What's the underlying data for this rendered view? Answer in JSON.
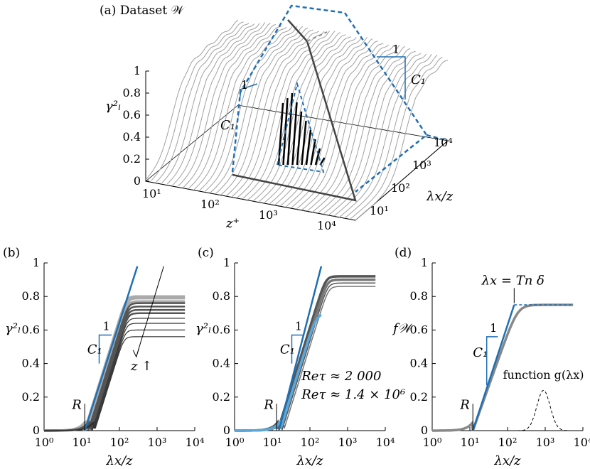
{
  "colors": {
    "blue": "#1f6fb3",
    "lightblue": "#5aa7d9",
    "gray": "#999999",
    "darkgray": "#444444",
    "black": "#000000"
  },
  "chart_data": [
    {
      "panel": "(a)",
      "type": "line",
      "title": "(a) Dataset 𝒲",
      "xlabel": "z⁺",
      "ylabel": "γ²ₗ",
      "zlabel": "λx/z",
      "x_ticks": [
        "10¹",
        "10²",
        "10³",
        "10⁴"
      ],
      "y_ticks": [
        "0",
        "0.2",
        "0.4",
        "0.6",
        "0.8",
        "1"
      ],
      "z_ticks": [
        "10¹",
        "10²",
        "10³",
        "10⁴"
      ],
      "annotations": [
        "1",
        "C₁",
        "1",
        "C₁"
      ],
      "n_profiles": 40
    },
    {
      "panel": "(b)",
      "type": "line",
      "xlabel": "λx/z",
      "ylabel": "γ²ₗ",
      "xscale": "log",
      "xlim": [
        1,
        10000
      ],
      "ylim": [
        0,
        1
      ],
      "x_ticks": [
        "10⁰",
        "10¹",
        "10²",
        "10³",
        "10⁴"
      ],
      "y_ticks": [
        "0",
        "0.2",
        "0.4",
        "0.6",
        "0.8",
        "1"
      ],
      "plateaus": [
        0.8,
        0.79,
        0.77,
        0.76,
        0.74,
        0.72,
        0.7,
        0.67,
        0.64,
        0.6,
        0.56
      ],
      "fit_line": {
        "x0": 12,
        "slope_per_decade": 0.71
      },
      "annotations": [
        "1",
        "C₁",
        "R",
        "z ↑"
      ]
    },
    {
      "panel": "(c)",
      "type": "line",
      "xlabel": "λx/z",
      "ylabel": "γ²ₗ",
      "xscale": "log",
      "xlim": [
        1,
        10000
      ],
      "ylim": [
        0,
        1
      ],
      "x_ticks": [
        "10⁰",
        "10¹",
        "10²",
        "10³",
        "10⁴"
      ],
      "y_ticks": [
        "0",
        "0.2",
        "0.4",
        "0.6",
        "0.8",
        "1"
      ],
      "plateaus": [
        0.92,
        0.9,
        0.88,
        0.86
      ],
      "low_re_end": [
        200,
        0.58
      ],
      "fit_line": {
        "x0": 15,
        "slope_per_decade": 0.73
      },
      "annotations": [
        "1",
        "C₁",
        "R"
      ],
      "legend": [
        "Reτ ≈ 2 000",
        "Reτ ≈ 1.4 × 10⁶"
      ]
    },
    {
      "panel": "(d)",
      "type": "line",
      "xlabel": "λx/z",
      "ylabel": "f𝒲",
      "xscale": "log",
      "xlim": [
        1,
        10000
      ],
      "ylim": [
        0,
        1
      ],
      "x_ticks": [
        "10⁰",
        "10¹",
        "10²",
        "10³",
        "10⁴"
      ],
      "y_ticks": [
        "0",
        "0.2",
        "0.4",
        "0.6",
        "0.8",
        "1"
      ],
      "plateau": 0.75,
      "fit_line": {
        "x0": 12,
        "x1": 150,
        "y1": 0.75
      },
      "g_peak": {
        "x": 900,
        "y": 0.24
      },
      "annotations": [
        "λx = Tn δ",
        "1",
        "C₁",
        "R",
        "function g(λx)"
      ]
    }
  ]
}
